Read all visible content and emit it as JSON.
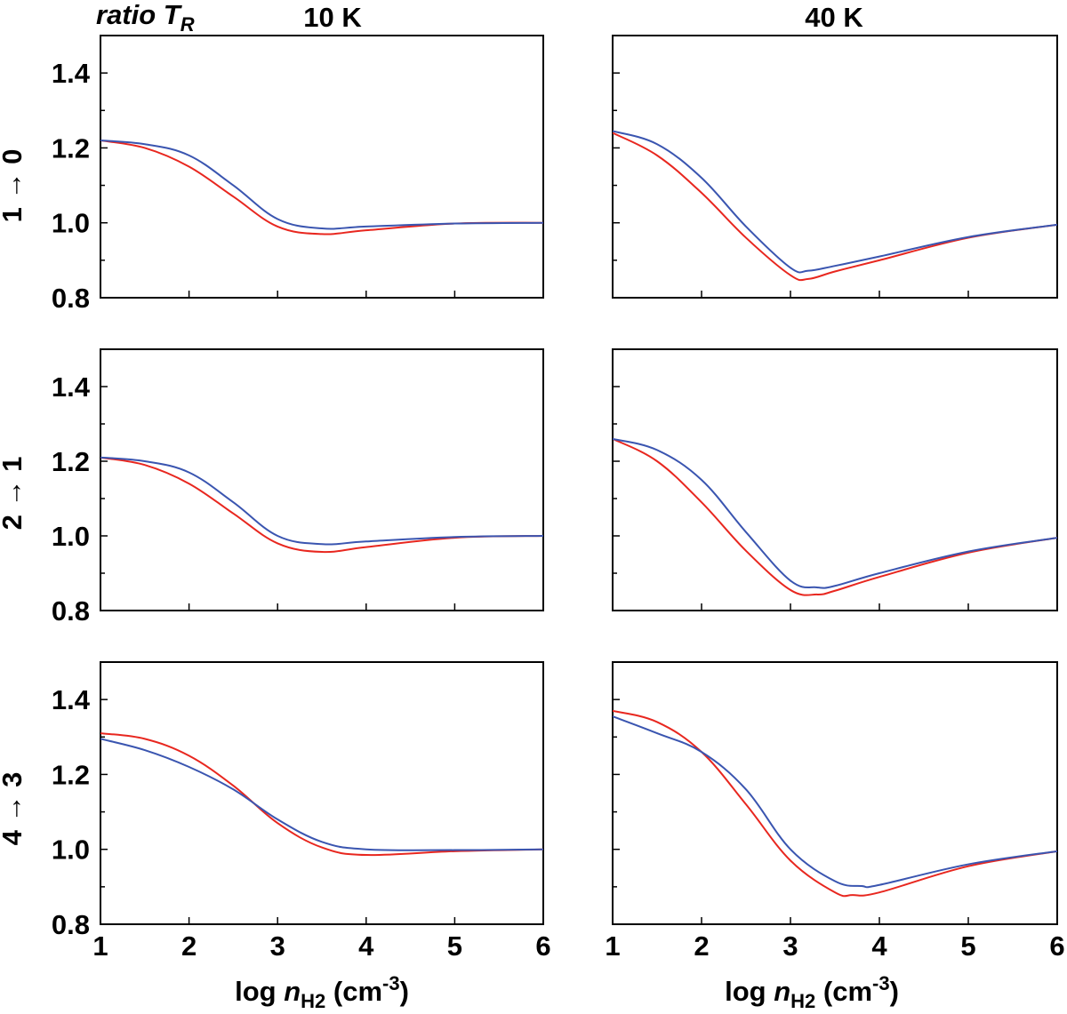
{
  "chart_data": {
    "type": "line",
    "corner_label": {
      "text": "ratio T",
      "sub": "R"
    },
    "columns": [
      {
        "title": "10 K"
      },
      {
        "title": "40 K"
      }
    ],
    "rows": [
      {
        "label": "1 → 0"
      },
      {
        "label": "2 → 1"
      },
      {
        "label": "4 → 3"
      }
    ],
    "xlabel": {
      "prefix": "log ",
      "var": "n",
      "sub": "H2",
      "unit": " (cm",
      "exp": "-3",
      "close": ")"
    },
    "xlim": [
      1,
      6
    ],
    "ylim": [
      0.8,
      1.5
    ],
    "x_ticks": [
      1,
      2,
      3,
      4,
      5,
      6
    ],
    "x_tick_labels": [
      "1",
      "2",
      "3",
      "4",
      "5",
      "6"
    ],
    "y_ticks": [
      0.8,
      1.0,
      1.2,
      1.4
    ],
    "y_tick_labels": [
      "0.8",
      "1.0",
      "1.2",
      "1.4"
    ],
    "y_minor_ticks": [
      0.9,
      1.1,
      1.3,
      1.5
    ],
    "series_colors": {
      "red": "#e8271f",
      "blue": "#3a55b0"
    },
    "panels": [
      {
        "row": 0,
        "col": 0,
        "red": [
          [
            1,
            1.22
          ],
          [
            1.5,
            1.2
          ],
          [
            2,
            1.15
          ],
          [
            2.5,
            1.07
          ],
          [
            3,
            0.99
          ],
          [
            3.5,
            0.97
          ],
          [
            4,
            0.98
          ],
          [
            5,
            0.998
          ],
          [
            6,
            1.0
          ]
        ],
        "blue": [
          [
            1,
            1.22
          ],
          [
            1.5,
            1.21
          ],
          [
            2,
            1.18
          ],
          [
            2.5,
            1.1
          ],
          [
            3,
            1.01
          ],
          [
            3.5,
            0.985
          ],
          [
            4,
            0.99
          ],
          [
            5,
            0.998
          ],
          [
            6,
            1.0
          ]
        ]
      },
      {
        "row": 0,
        "col": 1,
        "red": [
          [
            1,
            1.24
          ],
          [
            1.5,
            1.18
          ],
          [
            2,
            1.08
          ],
          [
            2.5,
            0.96
          ],
          [
            3,
            0.86
          ],
          [
            3.2,
            0.85
          ],
          [
            3.5,
            0.87
          ],
          [
            4,
            0.9
          ],
          [
            5,
            0.96
          ],
          [
            6,
            0.995
          ]
        ],
        "blue": [
          [
            1,
            1.245
          ],
          [
            1.5,
            1.21
          ],
          [
            2,
            1.12
          ],
          [
            2.5,
            0.99
          ],
          [
            3,
            0.88
          ],
          [
            3.2,
            0.872
          ],
          [
            3.5,
            0.885
          ],
          [
            4,
            0.91
          ],
          [
            5,
            0.962
          ],
          [
            6,
            0.995
          ]
        ]
      },
      {
        "row": 1,
        "col": 0,
        "red": [
          [
            1,
            1.21
          ],
          [
            1.5,
            1.19
          ],
          [
            2,
            1.14
          ],
          [
            2.5,
            1.06
          ],
          [
            3,
            0.98
          ],
          [
            3.5,
            0.957
          ],
          [
            4,
            0.97
          ],
          [
            5,
            0.995
          ],
          [
            6,
            1.0
          ]
        ],
        "blue": [
          [
            1,
            1.21
          ],
          [
            1.5,
            1.2
          ],
          [
            2,
            1.17
          ],
          [
            2.5,
            1.09
          ],
          [
            3,
            1.0
          ],
          [
            3.5,
            0.978
          ],
          [
            4,
            0.985
          ],
          [
            5,
            0.997
          ],
          [
            6,
            1.0
          ]
        ]
      },
      {
        "row": 1,
        "col": 1,
        "red": [
          [
            1,
            1.26
          ],
          [
            1.5,
            1.2
          ],
          [
            2,
            1.09
          ],
          [
            2.5,
            0.96
          ],
          [
            3,
            0.855
          ],
          [
            3.3,
            0.843
          ],
          [
            3.5,
            0.853
          ],
          [
            4,
            0.89
          ],
          [
            5,
            0.955
          ],
          [
            6,
            0.995
          ]
        ],
        "blue": [
          [
            1,
            1.26
          ],
          [
            1.5,
            1.23
          ],
          [
            2,
            1.15
          ],
          [
            2.5,
            1.01
          ],
          [
            3,
            0.88
          ],
          [
            3.3,
            0.862
          ],
          [
            3.5,
            0.866
          ],
          [
            4,
            0.9
          ],
          [
            5,
            0.958
          ],
          [
            6,
            0.995
          ]
        ]
      },
      {
        "row": 2,
        "col": 0,
        "red": [
          [
            1,
            1.31
          ],
          [
            1.5,
            1.295
          ],
          [
            2,
            1.25
          ],
          [
            2.5,
            1.17
          ],
          [
            3,
            1.07
          ],
          [
            3.5,
            1.005
          ],
          [
            4,
            0.985
          ],
          [
            5,
            0.995
          ],
          [
            6,
            1.0
          ]
        ],
        "blue": [
          [
            1,
            1.295
          ],
          [
            1.5,
            1.265
          ],
          [
            2,
            1.22
          ],
          [
            2.5,
            1.16
          ],
          [
            3,
            1.08
          ],
          [
            3.5,
            1.02
          ],
          [
            4,
            1.0
          ],
          [
            5,
            0.998
          ],
          [
            6,
            1.0
          ]
        ]
      },
      {
        "row": 2,
        "col": 1,
        "red": [
          [
            1,
            1.37
          ],
          [
            1.5,
            1.34
          ],
          [
            2,
            1.26
          ],
          [
            2.5,
            1.12
          ],
          [
            3,
            0.97
          ],
          [
            3.5,
            0.885
          ],
          [
            3.7,
            0.878
          ],
          [
            4,
            0.885
          ],
          [
            5,
            0.955
          ],
          [
            6,
            0.995
          ]
        ],
        "blue": [
          [
            1,
            1.355
          ],
          [
            1.5,
            1.31
          ],
          [
            2,
            1.26
          ],
          [
            2.5,
            1.16
          ],
          [
            3,
            1.0
          ],
          [
            3.5,
            0.915
          ],
          [
            3.8,
            0.902
          ],
          [
            4,
            0.905
          ],
          [
            5,
            0.96
          ],
          [
            6,
            0.995
          ]
        ]
      }
    ]
  }
}
